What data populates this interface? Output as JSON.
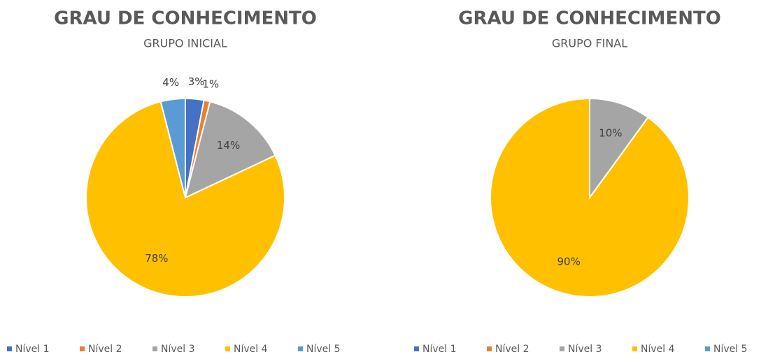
{
  "chart_data": [
    {
      "type": "pie",
      "title": "GRAU DE CONHECIMENTO",
      "subtitle": "GRUPO INICIAL",
      "categories": [
        "Nível 1",
        "Nível 2",
        "Nível 3",
        "Nível 4",
        "Nível 5"
      ],
      "values": [
        3,
        1,
        14,
        78,
        4
      ],
      "value_labels": [
        "3%",
        "1%",
        "14%",
        "78%",
        "4%"
      ],
      "colors": [
        "#4472c4",
        "#ed7d31",
        "#a5a5a5",
        "#ffc000",
        "#5b9bd5"
      ],
      "legend": "bottom"
    },
    {
      "type": "pie",
      "title": "GRAU DE CONHECIMENTO",
      "subtitle": "GRUPO FINAL",
      "categories": [
        "Nível 1",
        "Nível 2",
        "Nível 3",
        "Nível 4",
        "Nível 5"
      ],
      "values": [
        0,
        0,
        10,
        90,
        0
      ],
      "value_labels": [
        null,
        null,
        "10%",
        "90%",
        null
      ],
      "colors": [
        "#4472c4",
        "#ed7d31",
        "#a5a5a5",
        "#ffc000",
        "#5b9bd5"
      ],
      "legend": "bottom"
    }
  ]
}
